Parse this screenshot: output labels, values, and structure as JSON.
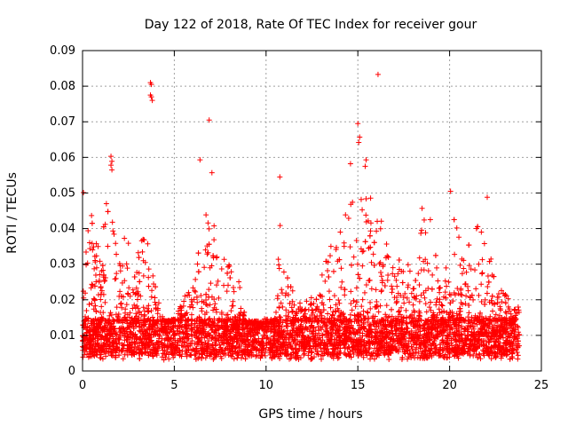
{
  "chart_data": {
    "type": "scatter",
    "title": "Day 122 of 2018, Rate Of TEC Index for receiver gour",
    "xlabel": "GPS time / hours",
    "ylabel": "ROTI / TECUs",
    "xlim": [
      0,
      25
    ],
    "ylim": [
      0,
      0.09
    ],
    "xticks": [
      "0",
      "5",
      "10",
      "15",
      "20",
      "25"
    ],
    "yticks": [
      "0",
      "0.01",
      "0.02",
      "0.03",
      "0.04",
      "0.05",
      "0.06",
      "0.07",
      "0.08",
      "0.09"
    ],
    "grid": true,
    "marker": "+",
    "marker_color": "#ff0000",
    "outliers": [
      [
        3.7,
        0.081
      ],
      [
        3.75,
        0.0805
      ],
      [
        3.7,
        0.0775
      ],
      [
        3.75,
        0.077
      ],
      [
        3.8,
        0.076
      ],
      [
        6.9,
        0.0705
      ],
      [
        6.4,
        0.0593
      ],
      [
        7.05,
        0.0557
      ],
      [
        15.0,
        0.0695
      ],
      [
        15.1,
        0.0657
      ],
      [
        15.05,
        0.0642
      ],
      [
        16.1,
        0.0833
      ],
      [
        1.55,
        0.0603
      ],
      [
        1.6,
        0.0589
      ],
      [
        1.55,
        0.0578
      ],
      [
        1.6,
        0.0565
      ],
      [
        15.45,
        0.0593
      ],
      [
        15.4,
        0.0575
      ],
      [
        14.6,
        0.0582
      ],
      [
        0.05,
        0.0501
      ],
      [
        1.3,
        0.047
      ],
      [
        10.75,
        0.0545
      ],
      [
        20.05,
        0.0505
      ],
      [
        22.05,
        0.0488
      ],
      [
        18.5,
        0.0457
      ],
      [
        18.95,
        0.0425
      ]
    ],
    "envelope": [
      [
        0.0,
        0.034
      ],
      [
        0.5,
        0.044
      ],
      [
        1.0,
        0.036
      ],
      [
        1.5,
        0.052
      ],
      [
        2.0,
        0.03
      ],
      [
        2.5,
        0.043
      ],
      [
        3.0,
        0.034
      ],
      [
        3.5,
        0.041
      ],
      [
        4.0,
        0.024
      ],
      [
        4.5,
        0.014
      ],
      [
        5.0,
        0.015
      ],
      [
        5.5,
        0.021
      ],
      [
        6.0,
        0.024
      ],
      [
        6.5,
        0.041
      ],
      [
        7.0,
        0.048
      ],
      [
        7.5,
        0.034
      ],
      [
        8.0,
        0.03
      ],
      [
        8.5,
        0.026
      ],
      [
        9.0,
        0.011
      ],
      [
        9.5,
        0.012
      ],
      [
        10.0,
        0.012
      ],
      [
        10.5,
        0.015
      ],
      [
        10.8,
        0.049
      ],
      [
        11.0,
        0.034
      ],
      [
        11.5,
        0.022
      ],
      [
        12.0,
        0.02
      ],
      [
        12.5,
        0.022
      ],
      [
        13.0,
        0.026
      ],
      [
        13.5,
        0.037
      ],
      [
        14.0,
        0.044
      ],
      [
        14.5,
        0.049
      ],
      [
        15.0,
        0.05
      ],
      [
        15.5,
        0.052
      ],
      [
        16.0,
        0.05
      ],
      [
        16.5,
        0.037
      ],
      [
        17.0,
        0.033
      ],
      [
        17.5,
        0.031
      ],
      [
        18.0,
        0.03
      ],
      [
        18.5,
        0.045
      ],
      [
        19.0,
        0.036
      ],
      [
        19.5,
        0.03
      ],
      [
        20.0,
        0.048
      ],
      [
        20.5,
        0.039
      ],
      [
        21.0,
        0.036
      ],
      [
        21.5,
        0.042
      ],
      [
        22.0,
        0.047
      ],
      [
        22.5,
        0.024
      ],
      [
        23.0,
        0.022
      ],
      [
        23.5,
        0.021
      ],
      [
        23.8,
        0.018
      ]
    ],
    "baseline_range": [
      0.004,
      0.014
    ],
    "x_extent": [
      0.0,
      23.8
    ]
  }
}
